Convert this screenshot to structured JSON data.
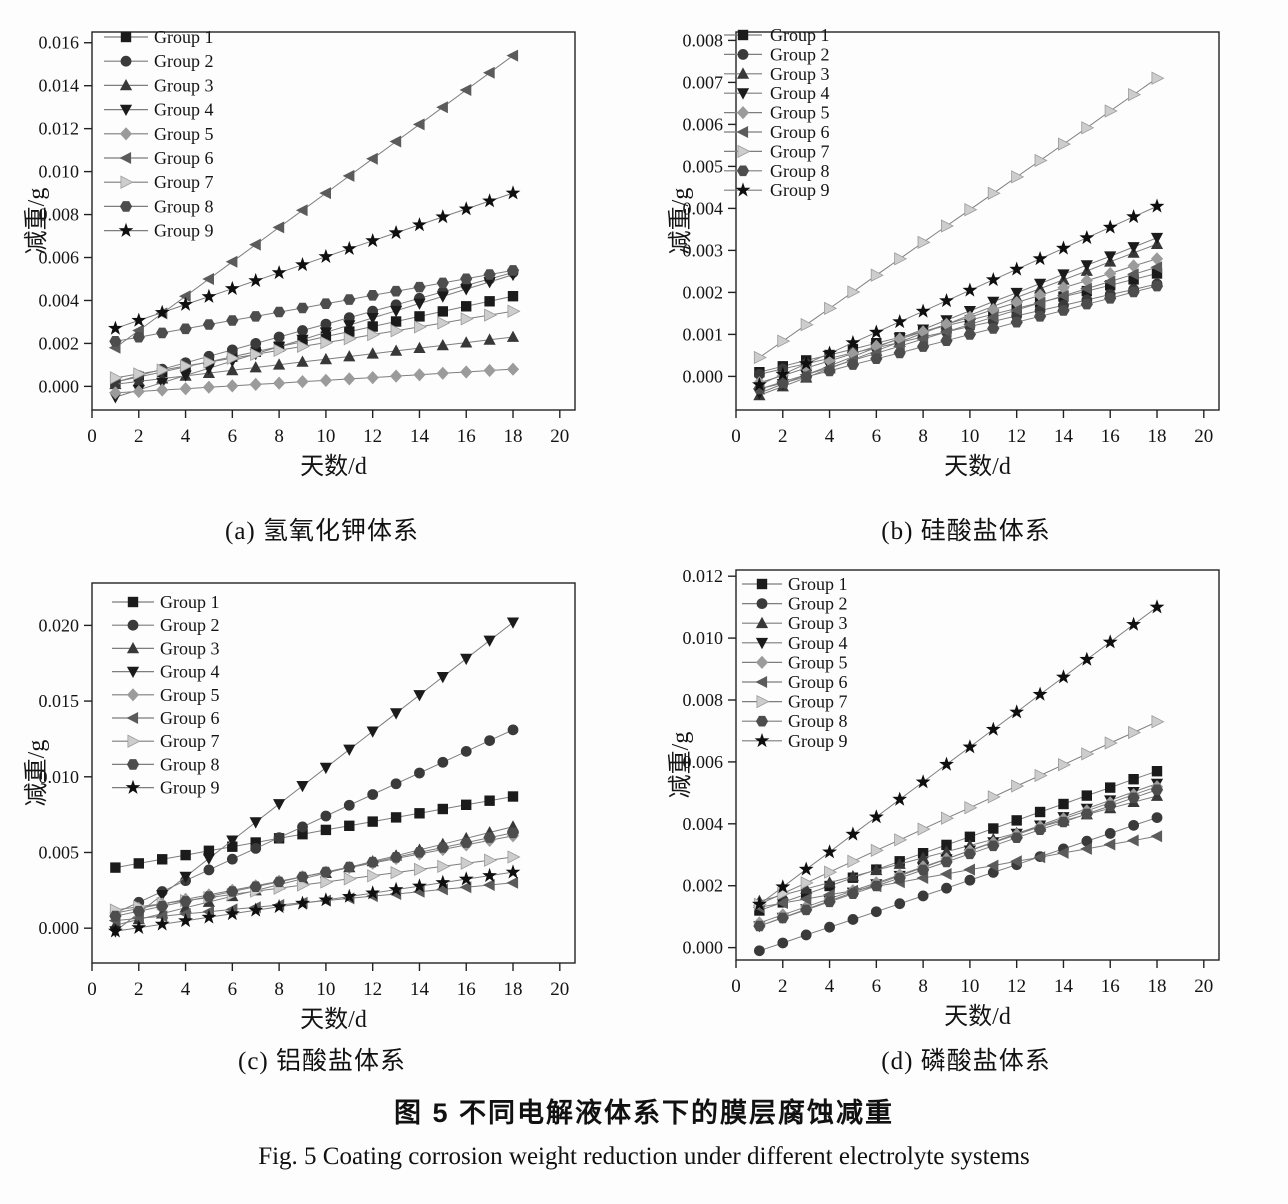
{
  "figure": {
    "title_zh": "图 5  不同电解液体系下的膜层腐蚀减重",
    "title_en": "Fig. 5  Coating corrosion weight reduction under different electrolyte systems"
  },
  "colors": {
    "line": "#7d7d7d",
    "axis": "#222222",
    "background": "#fdfdfd"
  },
  "groups": [
    {
      "label": "Group 1",
      "marker": "square",
      "color": "#1b1b1b"
    },
    {
      "label": "Group 2",
      "marker": "circle",
      "color": "#3a3a3a"
    },
    {
      "label": "Group 3",
      "marker": "triangle-up",
      "color": "#383838"
    },
    {
      "label": "Group 4",
      "marker": "triangle-down",
      "color": "#1b1b1b"
    },
    {
      "label": "Group 5",
      "marker": "diamond",
      "color": "#9b9b9b"
    },
    {
      "label": "Group 6",
      "marker": "triangle-left",
      "color": "#5b5b5b"
    },
    {
      "label": "Group 7",
      "marker": "triangle-right",
      "color": "#cdcdcd"
    },
    {
      "label": "Group 8",
      "marker": "hexagon",
      "color": "#4d4d4d"
    },
    {
      "label": "Group 9",
      "marker": "star",
      "color": "#0f0f0f"
    }
  ],
  "chart_data": [
    {
      "type": "line",
      "panel": "a",
      "caption": "(a) 氢氧化钾体系",
      "xlabel": "天数/d",
      "ylabel": "减重/g",
      "x_range": [
        0,
        20
      ],
      "x_tick_step": 2,
      "y_tick_max": 0.016,
      "y_tick_step": 0.002,
      "y_tick_decimals": 3,
      "y_scale": 0.0001,
      "x": [
        1,
        2,
        3,
        4,
        5,
        6,
        7,
        8,
        9,
        10,
        11,
        12,
        13,
        14,
        15,
        16,
        17,
        18
      ],
      "series": [
        {
          "name": "Group 1",
          "y": [
            2,
            4.4,
            6.7,
            9.1,
            11.4,
            13.8,
            16.1,
            18.5,
            20.8,
            23.2,
            25.5,
            27.9,
            30.2,
            32.6,
            34.9,
            37.3,
            39.6,
            42
          ]
        },
        {
          "name": "Group 2",
          "y": [
            2,
            5,
            8,
            11,
            14,
            17,
            20,
            23,
            26,
            29,
            32,
            35,
            38,
            41,
            44,
            47,
            50,
            53
          ]
        },
        {
          "name": "Group 3",
          "y": [
            1,
            2.3,
            3.6,
            4.9,
            6.2,
            7.5,
            8.8,
            10.1,
            11.4,
            12.6,
            13.9,
            15.2,
            16.5,
            17.8,
            19.1,
            20.4,
            21.7,
            23
          ]
        },
        {
          "name": "Group 4",
          "y": [
            -5,
            -1.6,
            1.7,
            5.1,
            8.4,
            11.8,
            15.1,
            18.5,
            21.8,
            25.2,
            28.5,
            31.9,
            35.2,
            38.6,
            41.9,
            45.3,
            48.6,
            52
          ]
        },
        {
          "name": "Group 5",
          "y": [
            -3,
            -2.4,
            -1.7,
            -1.1,
            -0.4,
            0.2,
            0.9,
            1.5,
            2.2,
            2.8,
            3.5,
            4.1,
            4.8,
            5.4,
            6.1,
            6.7,
            7.4,
            8
          ]
        },
        {
          "name": "Group 6",
          "y": [
            18,
            26,
            34,
            42,
            50,
            58,
            66,
            74,
            82,
            90,
            98,
            106,
            114,
            122,
            130,
            138,
            146,
            154
          ]
        },
        {
          "name": "Group 7",
          "y": [
            4,
            5.8,
            7.6,
            9.5,
            11.3,
            13.1,
            14.9,
            16.8,
            18.6,
            20.4,
            22.2,
            24.1,
            25.9,
            27.7,
            29.5,
            31.4,
            33.2,
            35
          ]
        },
        {
          "name": "Group 8",
          "y": [
            21,
            22.9,
            24.9,
            26.8,
            28.8,
            30.7,
            32.6,
            34.6,
            36.5,
            38.5,
            40.4,
            42.4,
            44.3,
            46.2,
            48.2,
            50.1,
            52.1,
            54
          ]
        },
        {
          "name": "Group 9",
          "y": [
            27,
            30.7,
            34.4,
            38.1,
            41.8,
            45.5,
            49.2,
            52.9,
            56.6,
            60.4,
            64.1,
            67.8,
            71.5,
            75.2,
            78.9,
            82.6,
            86.3,
            90
          ]
        }
      ]
    },
    {
      "type": "line",
      "panel": "b",
      "caption": "(b) 硅酸盐体系",
      "xlabel": "天数/d",
      "ylabel": "减重/g",
      "x_range": [
        0,
        20
      ],
      "x_tick_step": 2,
      "y_tick_max": 0.008,
      "y_tick_step": 0.001,
      "y_tick_decimals": 3,
      "y_scale": 0.0001,
      "x": [
        1,
        2,
        3,
        4,
        5,
        6,
        7,
        8,
        9,
        10,
        11,
        12,
        13,
        14,
        15,
        16,
        17,
        18
      ],
      "series": [
        {
          "name": "Group 1",
          "y": [
            1,
            2.4,
            3.8,
            5.1,
            6.5,
            7.9,
            9.3,
            10.7,
            12.1,
            13.4,
            14.8,
            16.2,
            17.6,
            19,
            20.3,
            21.7,
            23.1,
            24.5
          ]
        },
        {
          "name": "Group 2",
          "y": [
            0.5,
            1.8,
            3,
            4.3,
            5.6,
            6.8,
            8.1,
            9.4,
            10.6,
            11.9,
            13.1,
            14.4,
            15.7,
            16.9,
            18.2,
            19.5,
            20.7,
            22
          ]
        },
        {
          "name": "Group 3",
          "y": [
            -4.5,
            -2.4,
            -0.3,
            1.9,
            4,
            6.1,
            8.2,
            10.3,
            12.4,
            14.6,
            16.7,
            18.8,
            20.9,
            23,
            25.1,
            27.3,
            29.4,
            31.5
          ]
        },
        {
          "name": "Group 4",
          "y": [
            -4,
            -1.8,
            0.4,
            2.5,
            4.7,
            6.9,
            9.1,
            11.2,
            13.4,
            15.6,
            17.8,
            19.9,
            22.1,
            24.3,
            26.5,
            28.6,
            30.8,
            33
          ]
        },
        {
          "name": "Group 5",
          "y": [
            -1.5,
            0.2,
            2,
            3.7,
            5.4,
            7.2,
            8.9,
            10.6,
            12.4,
            14.1,
            15.9,
            17.6,
            19.3,
            21.1,
            22.8,
            24.5,
            26.3,
            28
          ]
        },
        {
          "name": "Group 6",
          "y": [
            -3,
            -1.3,
            0.4,
            2.1,
            3.8,
            5.5,
            7.2,
            8.9,
            10.6,
            12.4,
            14.1,
            15.8,
            17.5,
            19.2,
            20.9,
            22.6,
            24.3,
            26
          ]
        },
        {
          "name": "Group 7",
          "y": [
            4.5,
            8.4,
            12.3,
            16.2,
            20.1,
            24.1,
            28,
            31.9,
            35.8,
            39.7,
            43.6,
            47.5,
            51.4,
            55.3,
            59.2,
            63.2,
            67.1,
            71
          ]
        },
        {
          "name": "Group 8",
          "y": [
            -3,
            -1.6,
            -0.1,
            1.3,
            2.8,
            4.2,
            5.6,
            7.1,
            8.5,
            10,
            11.4,
            12.9,
            14.3,
            15.7,
            17.2,
            18.6,
            20.1,
            21.5
          ]
        },
        {
          "name": "Group 9",
          "y": [
            -2,
            0.5,
            3,
            5.5,
            8,
            10.5,
            13,
            15.5,
            18,
            20.5,
            23,
            25.5,
            28,
            30.5,
            33,
            35.5,
            38,
            40.5
          ]
        }
      ]
    },
    {
      "type": "line",
      "panel": "c",
      "caption": "(c) 铝酸盐体系",
      "xlabel": "天数/d",
      "ylabel": "减重/g",
      "x_range": [
        0,
        20
      ],
      "x_tick_step": 2,
      "y_tick_max": 0.02,
      "y_tick_step": 0.005,
      "y_tick_decimals": 3,
      "y_scale": 0.0001,
      "x": [
        1,
        2,
        3,
        4,
        5,
        6,
        7,
        8,
        9,
        10,
        11,
        12,
        13,
        14,
        15,
        16,
        17,
        18
      ],
      "series": [
        {
          "name": "Group 1",
          "y": [
            40,
            42.8,
            45.5,
            48.3,
            51.1,
            53.8,
            56.6,
            59.4,
            62.1,
            64.9,
            67.6,
            70.4,
            73.2,
            75.9,
            78.7,
            81.5,
            84.2,
            87
          ]
        },
        {
          "name": "Group 2",
          "y": [
            10,
            17.1,
            24.2,
            31.4,
            38.5,
            45.6,
            52.7,
            59.8,
            66.9,
            74.1,
            81.2,
            88.3,
            95.4,
            102.5,
            109.6,
            116.8,
            123.9,
            131
          ]
        },
        {
          "name": "Group 3",
          "y": [
            2,
            5.8,
            9.6,
            13.5,
            17.3,
            21.1,
            24.9,
            28.8,
            32.6,
            36.4,
            40.2,
            44.1,
            47.9,
            51.7,
            55.5,
            59.4,
            63.2,
            67
          ]
        },
        {
          "name": "Group 4",
          "y": [
            -2,
            10,
            22,
            34,
            46,
            58,
            70,
            82,
            94,
            106,
            118,
            130,
            142,
            154,
            166,
            178,
            190,
            202
          ]
        },
        {
          "name": "Group 5",
          "y": [
            10,
            13,
            16,
            19,
            22,
            25,
            28,
            31,
            34,
            37,
            40,
            43,
            46,
            49,
            52,
            55,
            58,
            61
          ]
        },
        {
          "name": "Group 6",
          "y": [
            5,
            6.5,
            7.9,
            9.4,
            10.9,
            12.4,
            13.8,
            15.3,
            16.8,
            18.2,
            19.7,
            21.2,
            22.6,
            24.1,
            25.6,
            27.1,
            28.5,
            30
          ]
        },
        {
          "name": "Group 7",
          "y": [
            12,
            14.1,
            16.1,
            18.2,
            20.2,
            22.3,
            24.4,
            26.4,
            28.5,
            30.5,
            32.6,
            34.6,
            36.7,
            38.8,
            40.8,
            42.9,
            44.9,
            47
          ]
        },
        {
          "name": "Group 8",
          "y": [
            8,
            11.2,
            14.5,
            17.7,
            20.9,
            24.2,
            27.4,
            30.6,
            33.9,
            37.1,
            40.4,
            43.6,
            46.8,
            50.1,
            53.3,
            56.5,
            59.8,
            63
          ]
        },
        {
          "name": "Group 9",
          "y": [
            -2,
            0.3,
            2.6,
            4.9,
            7.2,
            9.5,
            11.8,
            14.1,
            16.4,
            18.6,
            20.9,
            23.2,
            25.5,
            27.8,
            30.1,
            32.4,
            34.7,
            37
          ]
        }
      ]
    },
    {
      "type": "line",
      "panel": "d",
      "caption": "(d) 磷酸盐体系",
      "xlabel": "天数/d",
      "ylabel": "减重/g",
      "x_range": [
        0,
        20
      ],
      "x_tick_step": 2,
      "y_tick_max": 0.012,
      "y_tick_step": 0.002,
      "y_tick_decimals": 3,
      "y_scale": 0.0001,
      "x": [
        1,
        2,
        3,
        4,
        5,
        6,
        7,
        8,
        9,
        10,
        11,
        12,
        13,
        14,
        15,
        16,
        17,
        18
      ],
      "series": [
        {
          "name": "Group 1",
          "y": [
            12,
            14.6,
            17.3,
            19.9,
            22.6,
            25.2,
            27.9,
            30.5,
            33.2,
            35.8,
            38.5,
            41.1,
            43.8,
            46.4,
            49.1,
            51.7,
            54.4,
            57
          ]
        },
        {
          "name": "Group 2",
          "y": [
            -1,
            1.5,
            4.1,
            6.6,
            9.1,
            11.6,
            14.2,
            16.7,
            19.2,
            21.8,
            24.3,
            26.8,
            29.4,
            31.9,
            34.4,
            36.9,
            39.5,
            42
          ]
        },
        {
          "name": "Group 3",
          "y": [
            15,
            17,
            19,
            21,
            23,
            25,
            27,
            29,
            31,
            33,
            35,
            37,
            39,
            41,
            43,
            45,
            47,
            49
          ]
        },
        {
          "name": "Group 4",
          "y": [
            7,
            9.7,
            12.4,
            15.1,
            17.8,
            20.5,
            23.2,
            25.9,
            28.6,
            31.4,
            34.1,
            36.8,
            39.5,
            42.2,
            44.9,
            47.6,
            50.3,
            53
          ]
        },
        {
          "name": "Group 5",
          "y": [
            8,
            10.6,
            13.2,
            15.8,
            18.4,
            20.9,
            23.5,
            26.1,
            28.7,
            31.3,
            33.9,
            36.5,
            39.1,
            41.6,
            44.2,
            46.8,
            49.4,
            52
          ]
        },
        {
          "name": "Group 6",
          "y": [
            13,
            14.4,
            15.7,
            17.1,
            18.4,
            19.8,
            21.1,
            22.5,
            23.8,
            25.2,
            26.5,
            27.9,
            29.2,
            30.6,
            31.9,
            33.3,
            34.6,
            36
          ]
        },
        {
          "name": "Group 7",
          "y": [
            14,
            17.5,
            20.9,
            24.4,
            27.9,
            31.4,
            34.8,
            38.3,
            41.8,
            45.2,
            48.7,
            52.2,
            55.6,
            59.1,
            62.6,
            66.1,
            69.5,
            73
          ]
        },
        {
          "name": "Group 8",
          "y": [
            7,
            9.6,
            12.2,
            14.8,
            17.4,
            19.9,
            22.5,
            25.1,
            27.7,
            30.3,
            32.9,
            35.5,
            38.1,
            40.6,
            43.2,
            45.8,
            48.4,
            51
          ]
        },
        {
          "name": "Group 9",
          "y": [
            14,
            19.6,
            25.3,
            30.9,
            36.6,
            42.2,
            47.9,
            53.5,
            59.2,
            64.8,
            70.5,
            76.1,
            81.8,
            87.4,
            93.1,
            98.7,
            104.4,
            110
          ]
        }
      ]
    }
  ]
}
